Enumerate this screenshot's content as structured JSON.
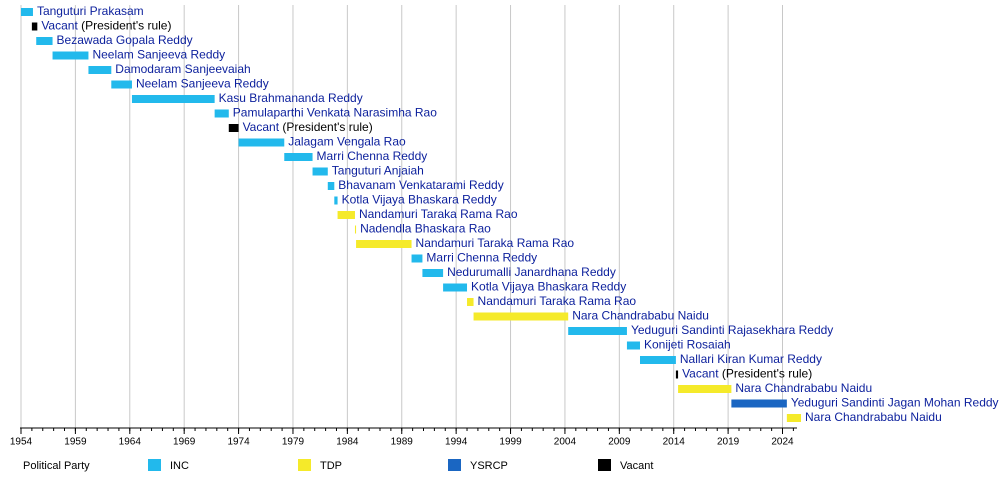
{
  "chart_data": {
    "type": "timeline",
    "xlim": [
      1954,
      2025.7
    ],
    "xticks": [
      1954,
      1959,
      1964,
      1969,
      1974,
      1979,
      1984,
      1989,
      1994,
      1999,
      2004,
      2009,
      2014,
      2019,
      2024
    ],
    "xminorticks": [
      1954,
      1955,
      1956,
      1957,
      1958,
      1959,
      1960,
      1961,
      1962,
      1963,
      1964,
      1965,
      1966,
      1967,
      1968,
      1969,
      1970,
      1971,
      1972,
      1973,
      1974,
      1975,
      1976,
      1977,
      1978,
      1979,
      1980,
      1981,
      1982,
      1983,
      1984,
      1985,
      1986,
      1987,
      1988,
      1989,
      1990,
      1991,
      1992,
      1993,
      1994,
      1995,
      1996,
      1997,
      1998,
      1999,
      2000,
      2001,
      2002,
      2003,
      2004,
      2005,
      2006,
      2007,
      2008,
      2009,
      2010,
      2011,
      2012,
      2013,
      2014,
      2015,
      2016,
      2017,
      2018,
      2019,
      2020,
      2021,
      2022,
      2023,
      2024,
      2025
    ],
    "grid": true,
    "legend_title": "Political Party",
    "parties": [
      {
        "name": "INC",
        "color": "#22b9ec"
      },
      {
        "name": "TDP",
        "color": "#f5ea2a"
      },
      {
        "name": "YSRCP",
        "color": "#1a66c2"
      },
      {
        "name": "Vacant",
        "color": "#000000"
      }
    ],
    "bars": [
      {
        "label": "Tanguturi Prakasam",
        "start": 1954.0,
        "end": 1955.1,
        "party": 0
      },
      {
        "label": "Vacant",
        "note": "(President's rule)",
        "start": 1955.0,
        "end": 1955.5,
        "party": 3
      },
      {
        "label": "Bezawada Gopala Reddy",
        "start": 1955.4,
        "end": 1956.9,
        "party": 0
      },
      {
        "label": "Neelam Sanjeeva Reddy",
        "start": 1956.9,
        "end": 1960.2,
        "party": 0
      },
      {
        "label": "Damodaram Sanjeevaiah",
        "start": 1960.2,
        "end": 1962.3,
        "party": 0
      },
      {
        "label": "Neelam Sanjeeva Reddy",
        "start": 1962.3,
        "end": 1964.2,
        "party": 0
      },
      {
        "label": "Kasu Brahmananda Reddy",
        "start": 1964.2,
        "end": 1971.8,
        "party": 0
      },
      {
        "label": "Pamulaparthi Venkata Narasimha Rao",
        "start": 1971.8,
        "end": 1973.1,
        "party": 0
      },
      {
        "label": "Vacant",
        "note": "(President's rule)",
        "start": 1973.1,
        "end": 1974.0,
        "party": 3
      },
      {
        "label": "Jalagam Vengala Rao",
        "start": 1974.0,
        "end": 1978.2,
        "party": 0
      },
      {
        "label": "Marri Chenna Reddy",
        "start": 1978.2,
        "end": 1980.8,
        "party": 0
      },
      {
        "label": "Tanguturi Anjaiah",
        "start": 1980.8,
        "end": 1982.2,
        "party": 0
      },
      {
        "label": "Bhavanam Venkatarami Reddy",
        "start": 1982.2,
        "end": 1982.8,
        "party": 0
      },
      {
        "label": "Kotla Vijaya Bhaskara Reddy",
        "start": 1982.8,
        "end": 1983.1,
        "party": 0
      },
      {
        "label": "Nandamuri Taraka Rama Rao",
        "start": 1983.1,
        "end": 1984.7,
        "party": 1
      },
      {
        "label": "Nadendla Bhaskara Rao",
        "start": 1984.7,
        "end": 1984.8,
        "party": 1
      },
      {
        "label": "Nandamuri Taraka Rama Rao",
        "start": 1984.8,
        "end": 1989.9,
        "party": 1
      },
      {
        "label": "Marri Chenna Reddy",
        "start": 1989.9,
        "end": 1990.9,
        "party": 0
      },
      {
        "label": "Nedurumalli Janardhana Reddy",
        "start": 1990.9,
        "end": 1992.8,
        "party": 0
      },
      {
        "label": "Kotla Vijaya Bhaskara Reddy",
        "start": 1992.8,
        "end": 1995.0,
        "party": 0
      },
      {
        "label": "Nandamuri Taraka Rama Rao",
        "start": 1995.0,
        "end": 1995.6,
        "party": 1
      },
      {
        "label": "Nara Chandrababu Naidu",
        "start": 1995.6,
        "end": 2004.3,
        "party": 1
      },
      {
        "label": "Yeduguri Sandinti Rajasekhara Reddy",
        "start": 2004.3,
        "end": 2009.7,
        "party": 0
      },
      {
        "label": "Konijeti Rosaiah",
        "start": 2009.7,
        "end": 2010.9,
        "party": 0
      },
      {
        "label": "Nallari Kiran Kumar Reddy",
        "start": 2010.9,
        "end": 2014.2,
        "party": 0
      },
      {
        "label": "Vacant",
        "note": "(President's rule)",
        "start": 2014.2,
        "end": 2014.4,
        "party": 3
      },
      {
        "label": "Nara Chandrababu Naidu",
        "start": 2014.4,
        "end": 2019.3,
        "party": 1
      },
      {
        "label": "Yeduguri Sandinti Jagan Mohan Reddy",
        "start": 2019.3,
        "end": 2024.4,
        "party": 2
      },
      {
        "label": "Nara Chandrababu Naidu",
        "start": 2024.4,
        "end": 2025.7,
        "party": 1
      }
    ]
  }
}
